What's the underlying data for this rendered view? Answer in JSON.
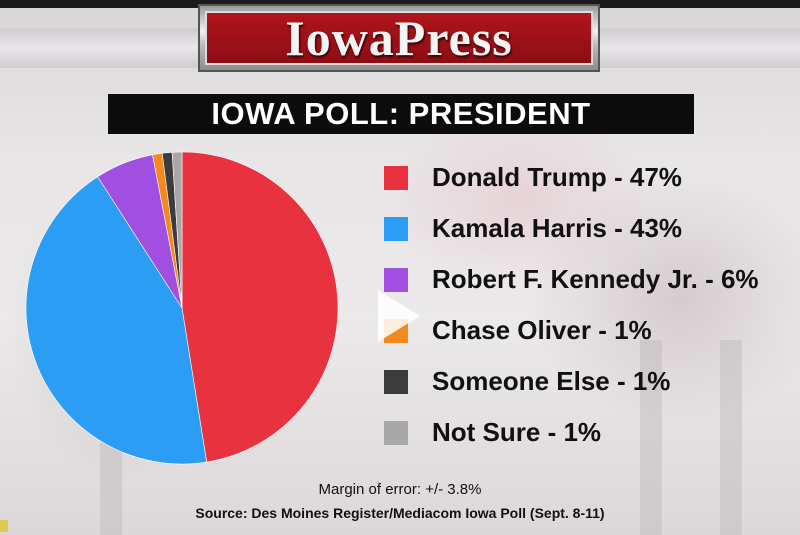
{
  "header": {
    "logo_text": "IowaPress",
    "title": "IOWA POLL: PRESIDENT"
  },
  "chart_data": {
    "type": "pie",
    "title": "IOWA POLL: PRESIDENT",
    "slices": [
      {
        "label": "Donald Trump - 47%",
        "name": "Donald Trump",
        "value": 47,
        "color": "#e8323f"
      },
      {
        "label": "Kamala Harris - 43%",
        "name": "Kamala Harris",
        "value": 43,
        "color": "#2b9df4"
      },
      {
        "label": "Robert F. Kennedy Jr. - 6%",
        "name": "Robert F. Kennedy Jr.",
        "value": 6,
        "color": "#a04fe0"
      },
      {
        "label": "Chase Oliver - 1%",
        "name": "Chase Oliver",
        "value": 1,
        "color": "#f28a1e"
      },
      {
        "label": "Someone Else - 1%",
        "name": "Someone Else",
        "value": 1,
        "color": "#3c3c3c"
      },
      {
        "label": "Not Sure - 1%",
        "name": "Not Sure",
        "value": 1,
        "color": "#a8a8a8"
      }
    ],
    "legend_position": "right"
  },
  "footer": {
    "margin_of_error": "Margin of error: +/- 3.8%",
    "source": "Source: Des Moines Register/Mediacom Iowa Poll (Sept. 8-11)"
  }
}
